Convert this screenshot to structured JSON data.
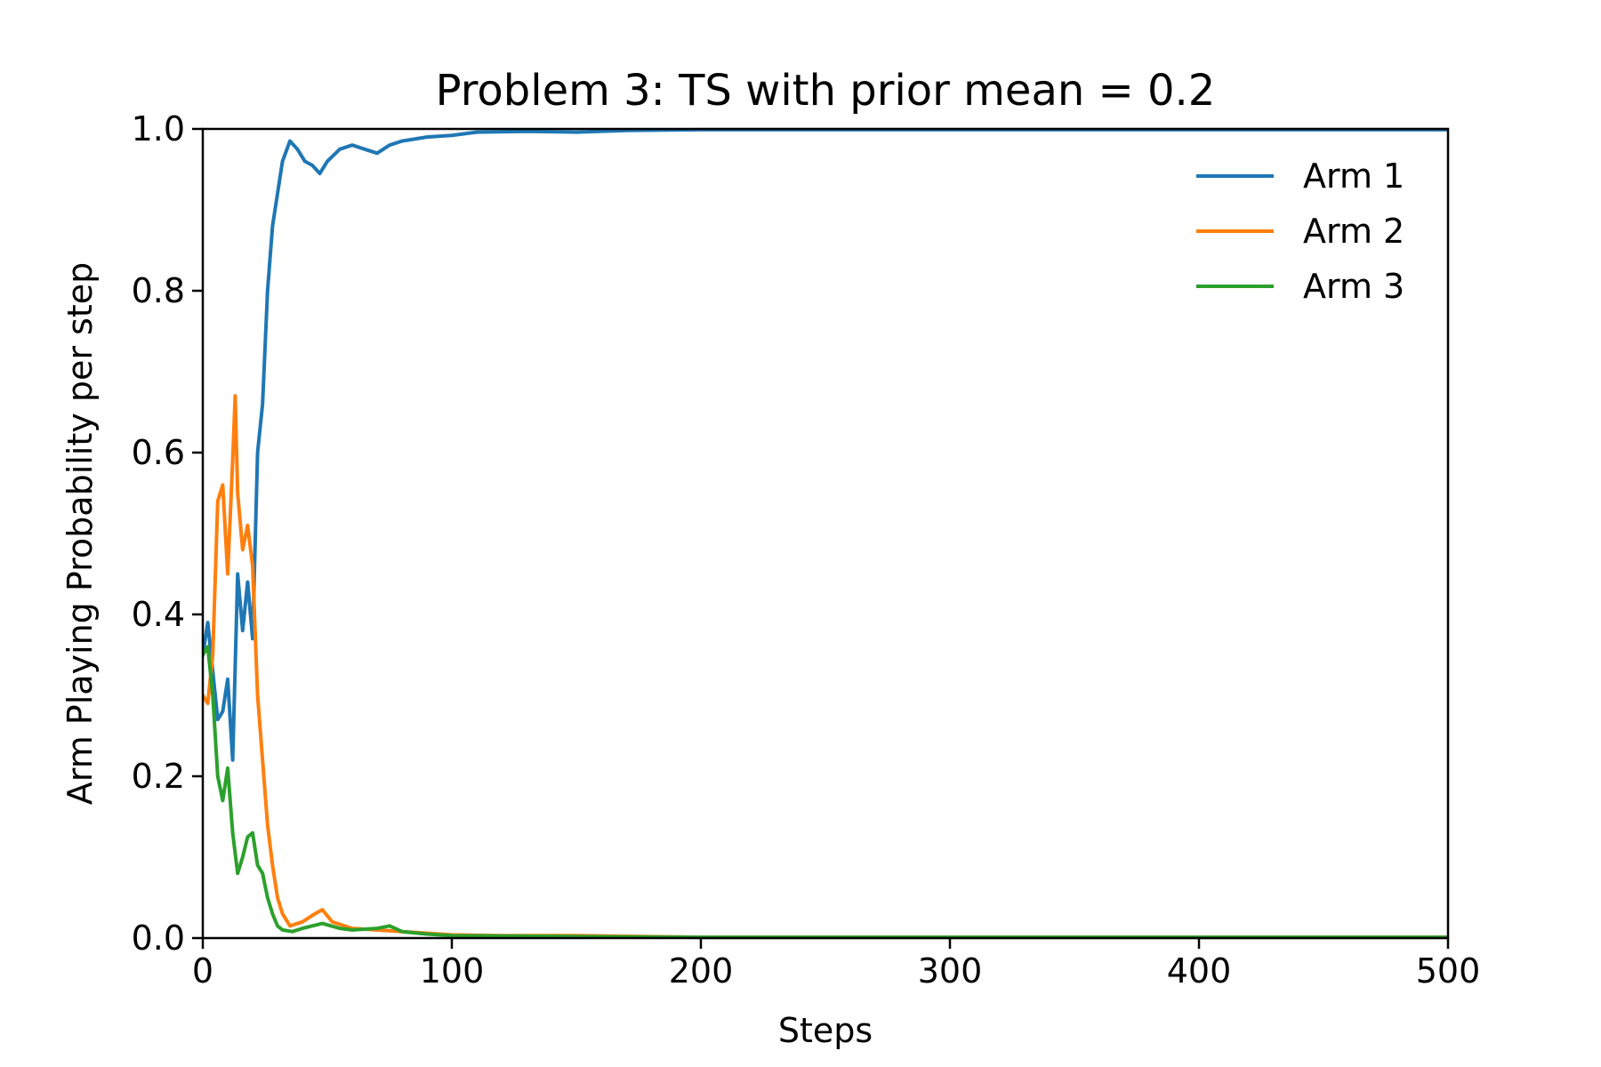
{
  "chart_data": {
    "type": "line",
    "title": "Problem 3: TS with prior mean = 0.2",
    "xlabel": "Steps",
    "ylabel": "Arm Playing Probability per step",
    "xlim": [
      0,
      500
    ],
    "ylim": [
      0.0,
      1.0
    ],
    "xticks": [
      "0",
      "100",
      "200",
      "300",
      "400",
      "500"
    ],
    "yticks": [
      "0.0",
      "0.2",
      "0.4",
      "0.6",
      "0.8",
      "1.0"
    ],
    "grid": false,
    "legend_position": "top-right",
    "series": [
      {
        "name": "Arm 1",
        "color": "#1f77b4",
        "points": [
          [
            0,
            0.35
          ],
          [
            2,
            0.39
          ],
          [
            4,
            0.33
          ],
          [
            6,
            0.27
          ],
          [
            8,
            0.28
          ],
          [
            10,
            0.32
          ],
          [
            12,
            0.22
          ],
          [
            14,
            0.45
          ],
          [
            16,
            0.38
          ],
          [
            18,
            0.44
          ],
          [
            20,
            0.37
          ],
          [
            22,
            0.6
          ],
          [
            24,
            0.66
          ],
          [
            26,
            0.8
          ],
          [
            28,
            0.88
          ],
          [
            30,
            0.92
          ],
          [
            32,
            0.96
          ],
          [
            35,
            0.985
          ],
          [
            38,
            0.975
          ],
          [
            41,
            0.96
          ],
          [
            44,
            0.955
          ],
          [
            47,
            0.945
          ],
          [
            50,
            0.96
          ],
          [
            55,
            0.975
          ],
          [
            60,
            0.98
          ],
          [
            65,
            0.975
          ],
          [
            70,
            0.97
          ],
          [
            75,
            0.98
          ],
          [
            80,
            0.985
          ],
          [
            90,
            0.99
          ],
          [
            100,
            0.992
          ],
          [
            110,
            0.996
          ],
          [
            130,
            0.997
          ],
          [
            150,
            0.996
          ],
          [
            170,
            0.998
          ],
          [
            200,
            0.999
          ],
          [
            250,
            0.999
          ],
          [
            300,
            0.999
          ],
          [
            350,
            0.999
          ],
          [
            400,
            0.999
          ],
          [
            450,
            0.999
          ],
          [
            500,
            0.999
          ]
        ]
      },
      {
        "name": "Arm 2",
        "color": "#ff7f0e",
        "points": [
          [
            0,
            0.3
          ],
          [
            2,
            0.29
          ],
          [
            4,
            0.35
          ],
          [
            6,
            0.54
          ],
          [
            8,
            0.56
          ],
          [
            10,
            0.45
          ],
          [
            12,
            0.59
          ],
          [
            13,
            0.67
          ],
          [
            14,
            0.55
          ],
          [
            16,
            0.48
          ],
          [
            18,
            0.51
          ],
          [
            20,
            0.46
          ],
          [
            22,
            0.3
          ],
          [
            24,
            0.22
          ],
          [
            26,
            0.14
          ],
          [
            28,
            0.09
          ],
          [
            30,
            0.05
          ],
          [
            32,
            0.03
          ],
          [
            35,
            0.015
          ],
          [
            40,
            0.02
          ],
          [
            45,
            0.03
          ],
          [
            48,
            0.035
          ],
          [
            52,
            0.02
          ],
          [
            60,
            0.012
          ],
          [
            70,
            0.01
          ],
          [
            80,
            0.008
          ],
          [
            90,
            0.006
          ],
          [
            100,
            0.004
          ],
          [
            120,
            0.003
          ],
          [
            150,
            0.003
          ],
          [
            200,
            0.001
          ],
          [
            300,
            0.001
          ],
          [
            400,
            0.001
          ],
          [
            500,
            0.001
          ]
        ]
      },
      {
        "name": "Arm 3",
        "color": "#2ca02c",
        "points": [
          [
            0,
            0.35
          ],
          [
            2,
            0.36
          ],
          [
            4,
            0.3
          ],
          [
            6,
            0.2
          ],
          [
            8,
            0.17
          ],
          [
            10,
            0.21
          ],
          [
            12,
            0.13
          ],
          [
            14,
            0.08
          ],
          [
            16,
            0.1
          ],
          [
            18,
            0.125
          ],
          [
            20,
            0.13
          ],
          [
            22,
            0.09
          ],
          [
            24,
            0.08
          ],
          [
            26,
            0.05
          ],
          [
            28,
            0.03
          ],
          [
            30,
            0.015
          ],
          [
            32,
            0.01
          ],
          [
            36,
            0.008
          ],
          [
            40,
            0.012
          ],
          [
            48,
            0.018
          ],
          [
            55,
            0.012
          ],
          [
            60,
            0.01
          ],
          [
            70,
            0.012
          ],
          [
            75,
            0.015
          ],
          [
            80,
            0.008
          ],
          [
            90,
            0.005
          ],
          [
            100,
            0.003
          ],
          [
            150,
            0.002
          ],
          [
            200,
            0.001
          ],
          [
            300,
            0.001
          ],
          [
            400,
            0.001
          ],
          [
            500,
            0.001
          ]
        ]
      }
    ]
  }
}
